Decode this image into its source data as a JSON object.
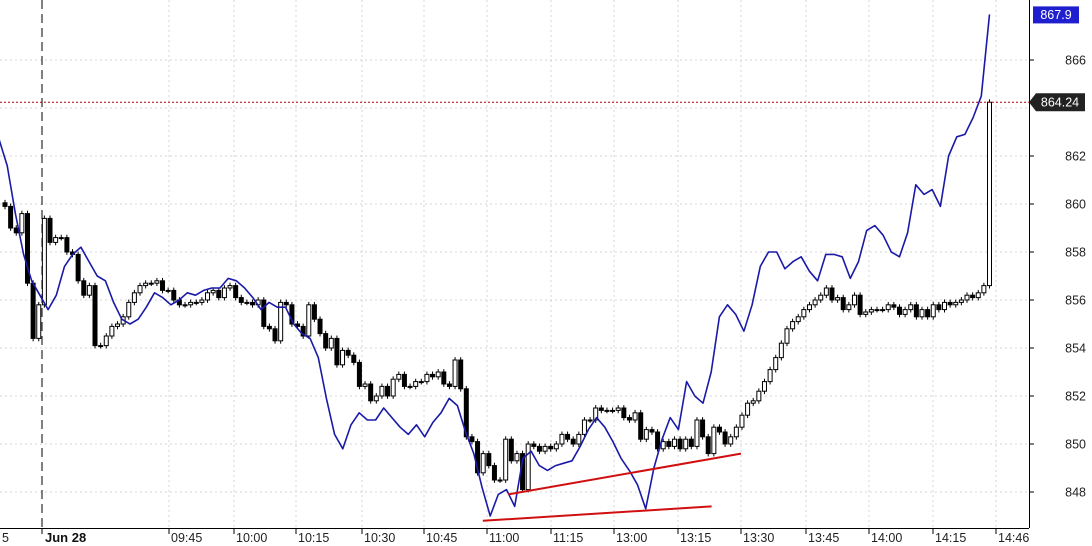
{
  "chart_data": {
    "type": "line",
    "date_label": "Jun 28",
    "left_edge_label": "5",
    "x_ticks": [
      "09:45",
      "10:00",
      "10:15",
      "10:30",
      "10:45",
      "11:00",
      "11:15",
      "13:00",
      "13:15",
      "13:30",
      "13:45",
      "14:00",
      "14:15",
      "14:46"
    ],
    "y_ticks": [
      848,
      850,
      852,
      854,
      856,
      858,
      860,
      862,
      866
    ],
    "ylim": [
      846.7,
      868.6
    ],
    "grid": true,
    "current_price_label": "864.24",
    "current_price": 864.24,
    "high_label": "867.9",
    "high_value": 867.9,
    "colors": {
      "blue_line": "#1a1aa8",
      "candles": "#000000",
      "trendline": "#d01010",
      "price_line": "#b00000",
      "blue_tag": "#1f1fd0",
      "dark_tag": "#222222"
    },
    "series": [
      {
        "style": "line",
        "values": [
          862.7,
          861.6,
          859.6,
          857.9,
          856.8,
          856.2,
          855.6,
          856.2,
          857.4,
          857.9,
          858.2,
          857.6,
          857.0,
          856.8,
          855.9,
          855.2,
          855.0,
          855.2,
          855.7,
          856.3,
          856.1,
          855.8,
          856.0,
          856.3,
          856.2,
          856.4,
          856.5,
          856.5,
          856.9,
          856.8,
          856.5,
          856.1,
          855.6,
          855.9,
          855.7,
          855.7,
          855.0,
          854.6,
          854.4,
          853.6,
          851.9,
          850.4,
          849.8,
          850.8,
          851.3,
          851.0,
          851.0,
          851.5,
          851.1,
          850.7,
          850.4,
          850.8,
          850.3,
          850.9,
          851.3,
          851.9,
          851.6,
          850.5,
          849.6,
          848.2,
          847.0,
          847.9,
          848.1,
          847.4,
          849.4,
          849.7,
          849.1,
          848.9,
          849.1,
          849.2,
          849.3,
          849.9,
          850.6,
          851.1,
          850.7,
          850.1,
          849.4,
          848.9,
          848.3,
          847.3,
          849.0,
          850.2,
          851.1,
          850.6,
          852.6,
          852.0,
          851.7,
          853.0,
          855.3,
          855.8,
          855.4,
          854.7,
          855.8,
          857.4,
          858.0,
          858.0,
          857.3,
          857.6,
          857.8,
          857.2,
          856.8,
          857.9,
          857.9,
          857.8,
          856.9,
          857.6,
          858.9,
          859.1,
          858.7,
          858.0,
          857.8,
          858.8,
          860.8,
          860.4,
          860.6,
          859.9,
          862.0,
          862.8,
          862.9,
          863.6,
          864.5,
          867.9
        ],
        "x_start": -1,
        "x_end": 989.5
      },
      {
        "style": "candles",
        "closes": [
          859.9,
          859.0,
          858.8,
          859.6,
          856.7,
          854.4,
          855.8,
          859.4,
          858.4,
          858.6,
          858.6,
          858.0,
          857.9,
          856.8,
          856.2,
          856.6,
          854.1,
          854.1,
          854.5,
          854.9,
          855.0,
          855.3,
          855.9,
          856.3,
          856.6,
          856.7,
          856.7,
          856.8,
          856.4,
          856.4,
          856.0,
          855.8,
          855.8,
          855.9,
          855.9,
          856.0,
          856.3,
          856.4,
          856.1,
          856.5,
          856.6,
          856.1,
          855.9,
          855.9,
          855.8,
          856.0,
          854.9,
          854.8,
          854.3,
          855.9,
          855.8,
          855.0,
          854.9,
          854.5,
          855.8,
          855.2,
          854.6,
          854.0,
          854.4,
          853.3,
          853.9,
          853.7,
          853.4,
          852.4,
          852.5,
          851.8,
          852.0,
          852.4,
          852.0,
          852.7,
          852.9,
          852.4,
          852.4,
          852.6,
          852.6,
          852.9,
          852.8,
          853.0,
          852.5,
          852.4,
          853.5,
          852.3,
          850.3,
          850.1,
          848.8,
          849.6,
          849.1,
          848.5,
          848.5,
          850.2,
          849.3,
          849.6,
          848.1,
          850.0,
          849.9,
          849.7,
          849.9,
          849.8,
          850.0,
          850.4,
          850.2,
          850.0,
          850.4,
          851.0,
          851.0,
          851.5,
          851.4,
          851.4,
          851.4,
          851.5,
          851.1,
          851.0,
          851.3,
          850.2,
          850.6,
          850.5,
          849.8,
          850.1,
          849.9,
          850.2,
          849.8,
          850.2,
          849.9,
          851.0,
          850.3,
          849.6,
          850.7,
          850.5,
          850.0,
          850.3,
          850.7,
          851.2,
          851.7,
          851.8,
          852.2,
          852.6,
          853.1,
          853.6,
          854.2,
          854.8,
          855.1,
          855.3,
          855.6,
          855.8,
          856.0,
          856.2,
          856.5,
          856.0,
          856.1,
          855.6,
          855.8,
          856.2,
          855.4,
          855.5,
          855.6,
          855.6,
          855.6,
          855.8,
          855.7,
          855.4,
          855.6,
          855.8,
          855.3,
          855.6,
          855.3,
          855.8,
          855.6,
          855.9,
          855.8,
          855.9,
          856.0,
          856.2,
          856.1,
          856.3,
          856.6,
          864.24
        ],
        "x_start": 5,
        "x_end": 989.5
      }
    ],
    "trendlines": [
      {
        "x1": "11:05",
        "y1": 847.9,
        "x2": "13:30",
        "y2": 849.6
      },
      {
        "x1": "10:59",
        "y1": 846.8,
        "x2": "13:23",
        "y2": 847.4
      }
    ],
    "vertical_marker": "Jun 28"
  }
}
